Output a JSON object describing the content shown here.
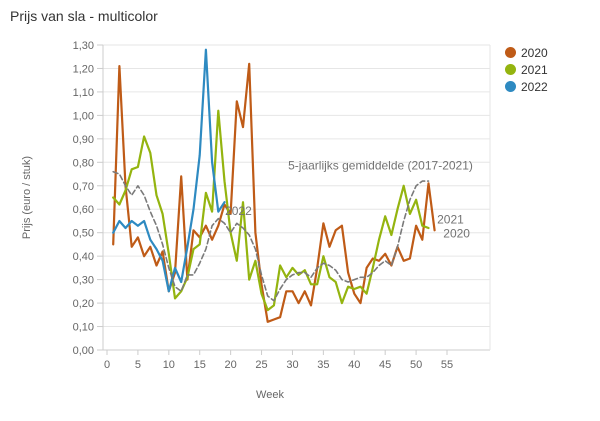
{
  "title": "Prijs van sla - multicolor",
  "chart_data": {
    "type": "line",
    "title": "Prijs van sla - multicolor",
    "xlabel": "Week",
    "ylabel": "Prijs (euro / stuk)",
    "xlim": [
      0,
      62
    ],
    "ylim": [
      0,
      1.3
    ],
    "grid": true,
    "legend_position": "top-right",
    "x_ticks": [
      0,
      5,
      10,
      15,
      20,
      25,
      30,
      35,
      40,
      45,
      50,
      55
    ],
    "y_ticks": [
      "0,00",
      "0,10",
      "0,20",
      "0,30",
      "0,40",
      "0,50",
      "0,60",
      "0,70",
      "0,80",
      "0,90",
      "1,00",
      "1,10",
      "1,20",
      "1,30"
    ],
    "series": [
      {
        "id": "2020",
        "name": "2020",
        "color": "#bf5b17",
        "dashed": false,
        "in_legend": true,
        "week_start": 1,
        "values": [
          0.45,
          1.21,
          0.7,
          0.44,
          0.48,
          0.4,
          0.44,
          0.36,
          0.42,
          0.25,
          0.33,
          0.74,
          0.3,
          0.51,
          0.48,
          0.53,
          0.47,
          0.53,
          0.62,
          0.58,
          1.06,
          0.95,
          1.22,
          0.5,
          0.28,
          0.12,
          0.13,
          0.14,
          0.25,
          0.25,
          0.2,
          0.25,
          0.19,
          0.35,
          0.54,
          0.44,
          0.51,
          0.53,
          0.33,
          0.24,
          0.2,
          0.35,
          0.39,
          0.38,
          0.41,
          0.36,
          0.44,
          0.38,
          0.39,
          0.53,
          0.47,
          0.71,
          0.51
        ]
      },
      {
        "id": "2021",
        "name": "2021",
        "color": "#94b40f",
        "dashed": false,
        "in_legend": true,
        "week_start": 1,
        "values": [
          0.65,
          0.62,
          0.68,
          0.77,
          0.78,
          0.91,
          0.84,
          0.66,
          0.58,
          0.41,
          0.22,
          0.25,
          0.31,
          0.43,
          0.45,
          0.67,
          0.59,
          1.02,
          0.72,
          0.5,
          0.38,
          0.63,
          0.3,
          0.38,
          0.24,
          0.17,
          0.19,
          0.36,
          0.31,
          0.35,
          0.32,
          0.34,
          0.28,
          0.28,
          0.4,
          0.31,
          0.29,
          0.2,
          0.27,
          0.26,
          0.27,
          0.24,
          0.35,
          0.47,
          0.57,
          0.49,
          0.6,
          0.7,
          0.58,
          0.64,
          0.53,
          0.52
        ]
      },
      {
        "id": "2022",
        "name": "2022",
        "color": "#2e8ac1",
        "dashed": false,
        "in_legend": true,
        "week_start": 1,
        "values": [
          0.5,
          0.55,
          0.52,
          0.55,
          0.53,
          0.55,
          0.47,
          0.43,
          0.38,
          0.25,
          0.35,
          0.29,
          0.44,
          0.6,
          0.83,
          1.28,
          0.8,
          0.59,
          0.63
        ]
      },
      {
        "id": "avg",
        "name": "5-jaarlijks gemiddelde (2017-2021)",
        "color": "#7a7a7a",
        "dashed": true,
        "in_legend": false,
        "week_start": 1,
        "values": [
          0.76,
          0.75,
          0.7,
          0.66,
          0.7,
          0.66,
          0.59,
          0.53,
          0.45,
          0.35,
          0.27,
          0.25,
          0.32,
          0.32,
          0.37,
          0.43,
          0.53,
          0.56,
          0.54,
          0.5,
          0.54,
          0.52,
          0.49,
          0.43,
          0.32,
          0.23,
          0.21,
          0.26,
          0.3,
          0.32,
          0.33,
          0.33,
          0.31,
          0.35,
          0.37,
          0.36,
          0.34,
          0.3,
          0.29,
          0.3,
          0.31,
          0.31,
          0.33,
          0.36,
          0.38,
          0.36,
          0.44,
          0.55,
          0.64,
          0.7,
          0.72,
          0.72
        ]
      }
    ],
    "annotations": [
      {
        "id": "avg-label",
        "text": "5-jaarlijks gemiddelde (2017-2021)",
        "week": 29.3,
        "value": 0.77
      },
      {
        "id": "label-2022",
        "text": "2022",
        "week": 19.1,
        "value": 0.575
      },
      {
        "id": "label-2021",
        "text": "2021",
        "week": 53.4,
        "value": 0.54
      },
      {
        "id": "label-2020",
        "text": "2020",
        "week": 54.4,
        "value": 0.48
      }
    ]
  }
}
